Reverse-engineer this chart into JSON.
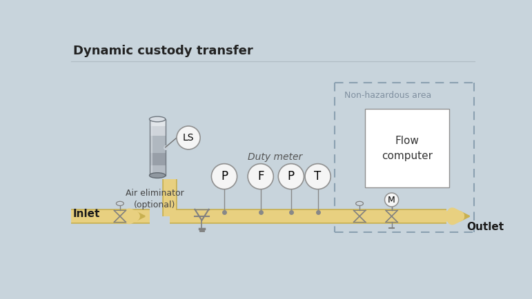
{
  "title": "Dynamic custody transfer",
  "bg_color": "#c8d4dc",
  "pipe_color": "#e8d080",
  "pipe_stroke": "#c8b050",
  "instrument_bg": "#f5f5f5",
  "instrument_border": "#909090",
  "flow_computer_bg": "#ffffff",
  "flow_computer_border": "#909090",
  "dashed_border_color": "#8aa0b0",
  "non_hazardous_label": "Non-hazardous area",
  "flow_computer_label": "Flow\ncomputer",
  "duty_meter_label": "Duty meter",
  "inlet_label": "Inlet",
  "outlet_label": "Outlet",
  "air_elim_label": "Air eliminator\n(optional)",
  "instruments": [
    "P",
    "F",
    "P",
    "T"
  ],
  "ls_label": "LS",
  "valve_color": "#808080",
  "tank_body_color": "#b0b8c0",
  "tank_highlight": "#d8dce2",
  "tank_shadow": "#888f96"
}
